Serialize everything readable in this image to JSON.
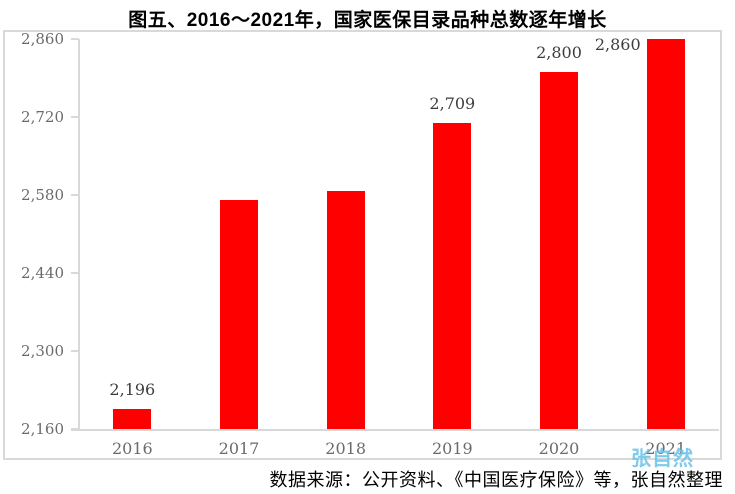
{
  "title": "图五、2016～2021年，国家医保目录品种总数逐年增长",
  "footer": "数据来源：公开资料、《中国医疗保险》等，张自然整理",
  "watermark": "张自然",
  "colors": {
    "bar": "#FF0000",
    "axis": "#D9D9D9",
    "tick_label": "#6B6B6B",
    "data_label": "#3D3D3D",
    "title_text": "#000000",
    "watermark": "#6EC4EB"
  },
  "chart_data": {
    "type": "bar",
    "title": "图五、2016～2021年，国家医保目录品种总数逐年增长",
    "categories": [
      "2016",
      "2017",
      "2018",
      "2019",
      "2020",
      "2021"
    ],
    "values": [
      2196,
      2571,
      2588,
      2709,
      2800,
      2860
    ],
    "data_labels": [
      "2,196",
      null,
      null,
      "2,709",
      "2,800",
      "2,860"
    ],
    "series_name": "国家医保目录品种总数",
    "xlabel": "",
    "ylabel": "",
    "ylim": [
      2160,
      2860
    ],
    "y_ticks": [
      2860,
      2720,
      2580,
      2440,
      2300,
      2160
    ],
    "y_tick_labels": [
      "2,860",
      "2,720",
      "2,580",
      "2,440",
      "2,300",
      "2,160"
    ],
    "grid": false,
    "legend": null,
    "bar_color": "#FF0000"
  }
}
